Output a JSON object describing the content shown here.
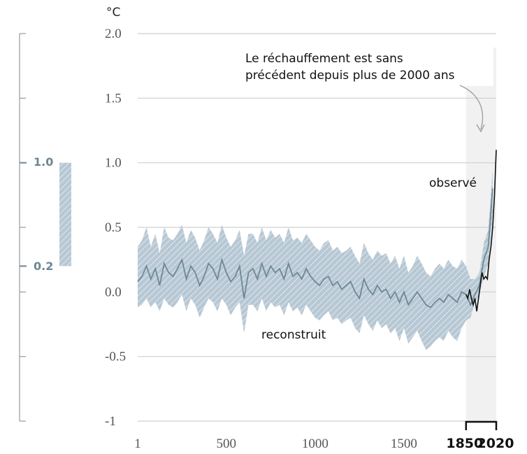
{
  "chart_data": {
    "type": "line",
    "unit": "°C",
    "ylim": [
      -1,
      2
    ],
    "xlim": [
      1,
      2020
    ],
    "y_ticks": [
      "2.0",
      "1.5",
      "1.0",
      "0.5",
      "0.0",
      "-0.5",
      "-1"
    ],
    "x_ticks": [
      "1",
      "500",
      "1000",
      "1500"
    ],
    "x_ticks_bold": [
      "1850",
      "2020"
    ],
    "grid": true,
    "annotation": "Le réchauffement est sans précédent depuis plus de 2000 ans",
    "annotation_lines": [
      "Le réchauffement est sans",
      "précédent depuis plus de 2000 ans"
    ],
    "highlight_period": [
      1850,
      2020
    ],
    "side_range": {
      "high_label": "1.0",
      "low_label": "0.2",
      "high": 1.0,
      "low": 0.2
    },
    "series": [
      {
        "name": "reconstruit",
        "color": "#6f8796",
        "band_color": "#a8bcca",
        "x": [
          1,
          25,
          50,
          75,
          100,
          125,
          150,
          175,
          200,
          225,
          250,
          275,
          300,
          325,
          350,
          375,
          400,
          425,
          450,
          475,
          500,
          525,
          550,
          575,
          600,
          625,
          650,
          675,
          700,
          725,
          750,
          775,
          800,
          825,
          850,
          875,
          900,
          925,
          950,
          975,
          1000,
          1025,
          1050,
          1075,
          1100,
          1125,
          1150,
          1175,
          1200,
          1225,
          1250,
          1275,
          1300,
          1325,
          1350,
          1375,
          1400,
          1425,
          1450,
          1475,
          1500,
          1525,
          1550,
          1575,
          1600,
          1625,
          1650,
          1675,
          1700,
          1725,
          1750,
          1775,
          1800,
          1825,
          1850,
          1875,
          1900,
          1925,
          1950,
          1975,
          2000
        ],
        "values": [
          0.08,
          0.12,
          0.2,
          0.1,
          0.18,
          0.05,
          0.22,
          0.15,
          0.12,
          0.18,
          0.25,
          0.1,
          0.2,
          0.15,
          0.05,
          0.12,
          0.22,
          0.18,
          0.1,
          0.25,
          0.15,
          0.08,
          0.12,
          0.2,
          -0.05,
          0.15,
          0.18,
          0.1,
          0.22,
          0.12,
          0.2,
          0.15,
          0.18,
          0.1,
          0.22,
          0.12,
          0.15,
          0.1,
          0.18,
          0.12,
          0.08,
          0.05,
          0.1,
          0.12,
          0.05,
          0.08,
          0.02,
          0.05,
          0.08,
          0.0,
          -0.05,
          0.1,
          0.02,
          -0.02,
          0.05,
          0.0,
          0.02,
          -0.05,
          0.0,
          -0.08,
          0.0,
          -0.1,
          -0.05,
          0.0,
          -0.05,
          -0.1,
          -0.12,
          -0.08,
          -0.05,
          -0.08,
          -0.02,
          -0.05,
          -0.08,
          0.0,
          -0.02,
          -0.1,
          -0.02,
          0.05,
          0.25,
          0.35,
          0.8
        ],
        "lower": [
          -0.12,
          -0.1,
          -0.05,
          -0.12,
          -0.08,
          -0.15,
          -0.05,
          -0.1,
          -0.12,
          -0.08,
          -0.02,
          -0.15,
          -0.05,
          -0.1,
          -0.2,
          -0.12,
          -0.05,
          -0.08,
          -0.15,
          -0.05,
          -0.1,
          -0.18,
          -0.12,
          -0.08,
          -0.32,
          -0.1,
          -0.1,
          -0.15,
          -0.05,
          -0.15,
          -0.08,
          -0.12,
          -0.1,
          -0.18,
          -0.08,
          -0.15,
          -0.12,
          -0.18,
          -0.1,
          -0.15,
          -0.2,
          -0.22,
          -0.18,
          -0.15,
          -0.22,
          -0.2,
          -0.25,
          -0.22,
          -0.2,
          -0.28,
          -0.32,
          -0.18,
          -0.25,
          -0.3,
          -0.22,
          -0.28,
          -0.25,
          -0.32,
          -0.28,
          -0.38,
          -0.28,
          -0.4,
          -0.35,
          -0.3,
          -0.38,
          -0.45,
          -0.42,
          -0.38,
          -0.35,
          -0.38,
          -0.3,
          -0.35,
          -0.38,
          -0.28,
          -0.22,
          -0.2,
          -0.08,
          -0.02,
          0.12,
          0.22,
          0.6
        ],
        "upper": [
          0.35,
          0.4,
          0.5,
          0.35,
          0.45,
          0.3,
          0.5,
          0.42,
          0.4,
          0.45,
          0.52,
          0.38,
          0.48,
          0.42,
          0.32,
          0.4,
          0.5,
          0.45,
          0.38,
          0.52,
          0.42,
          0.35,
          0.4,
          0.48,
          0.28,
          0.45,
          0.45,
          0.38,
          0.5,
          0.4,
          0.48,
          0.42,
          0.45,
          0.38,
          0.5,
          0.4,
          0.42,
          0.38,
          0.45,
          0.4,
          0.35,
          0.32,
          0.38,
          0.4,
          0.32,
          0.35,
          0.3,
          0.32,
          0.35,
          0.28,
          0.22,
          0.38,
          0.3,
          0.25,
          0.32,
          0.28,
          0.3,
          0.22,
          0.28,
          0.18,
          0.28,
          0.15,
          0.2,
          0.28,
          0.22,
          0.15,
          0.12,
          0.18,
          0.22,
          0.18,
          0.25,
          0.2,
          0.18,
          0.25,
          0.2,
          0.1,
          0.1,
          0.15,
          0.38,
          0.48,
          0.95
        ]
      },
      {
        "name": "observé",
        "color": "#111111",
        "x": [
          1850,
          1860,
          1870,
          1880,
          1890,
          1900,
          1910,
          1920,
          1930,
          1940,
          1950,
          1960,
          1970,
          1980,
          1990,
          2000,
          2010,
          2020
        ],
        "values": [
          -0.02,
          -0.05,
          0.02,
          -0.05,
          -0.1,
          -0.05,
          -0.15,
          -0.05,
          0.05,
          0.15,
          0.1,
          0.12,
          0.1,
          0.25,
          0.35,
          0.5,
          0.75,
          1.1
        ]
      }
    ]
  }
}
